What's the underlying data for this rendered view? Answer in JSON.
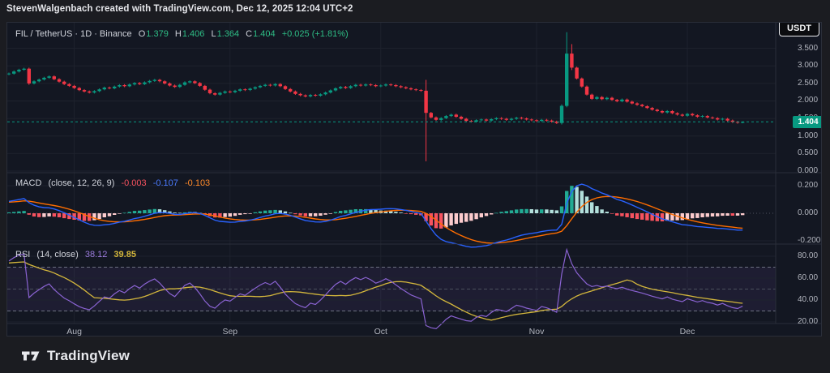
{
  "attribution": "StevenWalgenbach created with TradingView.com, Dec 12, 2025 12:04 UTC+2",
  "currency_button": "USDT",
  "price_badge": "1.404",
  "logo_text": "TradingView",
  "symbol_legend": {
    "symbol": "FIL / TetherUS · 1D · Binance",
    "open_label": "O",
    "open": "1.379",
    "high_label": "H",
    "high": "1.406",
    "low_label": "L",
    "low": "1.364",
    "close_label": "C",
    "close": "1.404",
    "change": "+0.025 (+1.81%)"
  },
  "indicators": {
    "macd": {
      "title": "MACD",
      "params": "(close, 12, 26, 9)",
      "hist_value": "-0.003",
      "macd_value": "-0.107",
      "signal_value": "-0.103"
    },
    "rsi": {
      "title": "RSI",
      "params": "(14, close)",
      "value": "38.12",
      "ma_value": "39.85"
    }
  },
  "axes": {
    "price": {
      "labels": [
        "3.500",
        "3.000",
        "2.500",
        "2.000",
        "1.500",
        "1.000",
        "0.500",
        "0.000"
      ],
      "values": [
        3.5,
        3.0,
        2.5,
        2.0,
        1.5,
        1.0,
        0.5,
        0.0
      ]
    },
    "macd": {
      "labels": [
        "0.200",
        "0.000",
        "-0.200"
      ],
      "values": [
        0.2,
        0.0,
        -0.2
      ]
    },
    "rsi": {
      "labels": [
        "80.00",
        "60.00",
        "40.00",
        "20.00"
      ],
      "values": [
        80,
        60,
        40,
        20
      ]
    },
    "time": {
      "ticks": [
        {
          "label": "Aug",
          "index": 13
        },
        {
          "label": "Sep",
          "index": 44
        },
        {
          "label": "Oct",
          "index": 74
        },
        {
          "label": "Nov",
          "index": 105
        },
        {
          "label": "Dec",
          "index": 135
        }
      ]
    }
  },
  "colors": {
    "page_bg": "#1b1c21",
    "panel_bg": "#131722",
    "separator": "#2a2e39",
    "grid": "#1e222d",
    "axis_text": "#b2b5be",
    "legend_text": "#d1d4dc",
    "up": "#089981",
    "down": "#f23645",
    "badge_bg": "#089981",
    "price_line": "#089981",
    "macd_line": "#2962ff",
    "signal_line": "#ff6d00",
    "hist_grow_above": "#22ab94",
    "hist_fall_above": "#b2dfdb",
    "hist_grow_below": "#fccbcd",
    "hist_fall_below": "#f7525f",
    "rsi_line": "#8a63d2",
    "rsi_ma": "#d4b73c",
    "rsi_band_fill": "rgba(126,87,194,0.10)",
    "rsi_band_line": "#6b7080",
    "rsi_mid_line": "#4a4f5c",
    "macd_zero_line": "#4c525e"
  },
  "chart_data": {
    "type": "candlestick",
    "interval": "1D",
    "price_pane": {
      "ylim": [
        0.0,
        4.2
      ],
      "last_price": 1.404,
      "pre_closes": [
        2.3,
        2.33,
        2.31,
        2.36,
        2.4,
        2.38,
        2.42,
        2.45,
        2.43,
        2.48,
        2.5,
        2.47,
        2.52,
        2.55,
        2.53,
        2.58,
        2.6,
        2.57,
        2.62,
        2.65,
        2.63,
        2.6,
        2.64,
        2.68,
        2.66,
        2.7,
        2.72,
        2.69,
        2.74,
        2.76
      ],
      "closes": [
        2.78,
        2.84,
        2.89,
        2.92,
        2.5,
        2.56,
        2.61,
        2.66,
        2.7,
        2.62,
        2.55,
        2.48,
        2.43,
        2.37,
        2.31,
        2.27,
        2.24,
        2.28,
        2.33,
        2.38,
        2.36,
        2.41,
        2.45,
        2.42,
        2.47,
        2.51,
        2.48,
        2.53,
        2.57,
        2.6,
        2.56,
        2.5,
        2.44,
        2.4,
        2.46,
        2.53,
        2.56,
        2.51,
        2.43,
        2.32,
        2.22,
        2.18,
        2.23,
        2.27,
        2.25,
        2.29,
        2.33,
        2.31,
        2.35,
        2.39,
        2.43,
        2.46,
        2.44,
        2.48,
        2.42,
        2.34,
        2.27,
        2.2,
        2.16,
        2.13,
        2.17,
        2.15,
        2.19,
        2.24,
        2.3,
        2.36,
        2.4,
        2.37,
        2.42,
        2.46,
        2.44,
        2.47,
        2.45,
        2.42,
        2.44,
        2.47,
        2.45,
        2.42,
        2.39,
        2.36,
        2.33,
        2.31,
        2.29,
        1.66,
        1.53,
        1.46,
        1.51,
        1.57,
        1.61,
        1.55,
        1.49,
        1.43,
        1.41,
        1.45,
        1.47,
        1.44,
        1.48,
        1.51,
        1.49,
        1.46,
        1.49,
        1.52,
        1.5,
        1.47,
        1.45,
        1.43,
        1.46,
        1.44,
        1.41,
        1.37,
        1.86,
        3.35,
        2.95,
        2.64,
        2.41,
        2.18,
        2.06,
        2.11,
        2.05,
        2.09,
        2.03,
        1.99,
        2.04,
        1.98,
        1.93,
        1.89,
        1.85,
        1.8,
        1.75,
        1.71,
        1.67,
        1.71,
        1.65,
        1.61,
        1.58,
        1.63,
        1.59,
        1.55,
        1.57,
        1.53,
        1.51,
        1.47,
        1.49,
        1.44,
        1.4,
        1.38,
        1.404
      ],
      "special_candles": {
        "4": [
          2.92,
          2.95,
          2.46,
          2.5
        ],
        "83": [
          2.29,
          2.6,
          0.28,
          1.66
        ],
        "110": [
          1.37,
          1.9,
          1.33,
          1.86
        ],
        "111": [
          1.86,
          3.96,
          1.82,
          3.35
        ],
        "112": [
          3.35,
          3.62,
          2.88,
          2.95
        ],
        "146": [
          1.379,
          1.406,
          1.364,
          1.404
        ]
      }
    },
    "macd_pane": {
      "source": "close",
      "fast": 12,
      "slow": 26,
      "signal": 9,
      "ylim": [
        -0.28,
        0.29
      ]
    },
    "rsi_pane": {
      "source": "close",
      "length": 14,
      "ma_length": 14,
      "bands": [
        70,
        50,
        30
      ],
      "ylim": [
        15,
        85
      ]
    }
  }
}
